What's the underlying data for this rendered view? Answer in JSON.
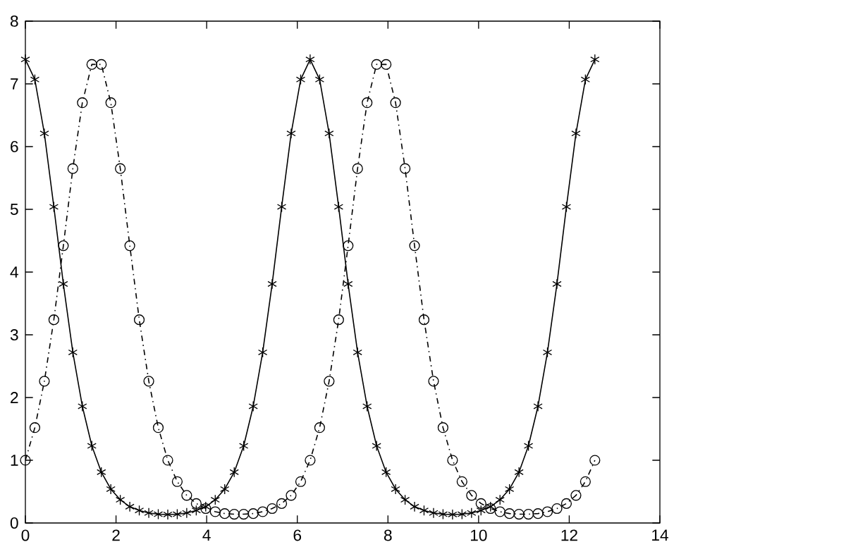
{
  "chart_data": {
    "type": "line",
    "x": [
      0,
      0.209,
      0.419,
      0.628,
      0.838,
      1.047,
      1.257,
      1.466,
      1.676,
      1.885,
      2.094,
      2.304,
      2.513,
      2.723,
      2.932,
      3.142,
      3.351,
      3.56,
      3.77,
      3.979,
      4.189,
      4.398,
      4.608,
      4.817,
      5.027,
      5.236,
      5.445,
      5.655,
      5.864,
      6.074,
      6.283,
      6.493,
      6.702,
      6.912,
      7.121,
      7.33,
      7.54,
      7.749,
      7.959,
      8.168,
      8.378,
      8.587,
      8.796,
      9.006,
      9.215,
      9.425,
      9.634,
      9.844,
      10.053,
      10.263,
      10.472,
      10.681,
      10.891,
      11.1,
      11.31,
      11.519,
      11.729,
      11.938,
      12.148,
      12.357,
      12.566
    ],
    "series": [
      {
        "color": "#000000",
        "marker": "cross",
        "line_style": "solid",
        "values": [
          7.39,
          7.07,
          6.21,
          5.04,
          3.81,
          2.72,
          1.86,
          1.23,
          0.81,
          0.54,
          0.37,
          0.26,
          0.2,
          0.16,
          0.14,
          0.135,
          0.14,
          0.16,
          0.2,
          0.26,
          0.37,
          0.54,
          0.81,
          1.23,
          1.86,
          2.72,
          3.81,
          5.04,
          6.21,
          7.07,
          7.39,
          7.07,
          6.21,
          5.04,
          3.81,
          2.72,
          1.86,
          1.23,
          0.81,
          0.54,
          0.37,
          0.26,
          0.2,
          0.16,
          0.14,
          0.135,
          0.14,
          0.16,
          0.2,
          0.26,
          0.37,
          0.54,
          0.81,
          1.23,
          1.86,
          2.72,
          3.81,
          5.04,
          6.21,
          7.07,
          7.39
        ]
      },
      {
        "color": "#000000",
        "marker": "circle",
        "line_style": "dashdot",
        "values": [
          1.0,
          1.52,
          2.26,
          3.24,
          4.42,
          5.65,
          6.7,
          7.31,
          7.31,
          6.7,
          5.65,
          4.42,
          3.24,
          2.26,
          1.52,
          1.0,
          0.66,
          0.44,
          0.31,
          0.23,
          0.18,
          0.15,
          0.14,
          0.14,
          0.15,
          0.18,
          0.23,
          0.31,
          0.44,
          0.66,
          1.0,
          1.52,
          2.26,
          3.24,
          4.42,
          5.65,
          6.7,
          7.31,
          7.31,
          6.7,
          5.65,
          4.42,
          3.24,
          2.26,
          1.52,
          1.0,
          0.66,
          0.44,
          0.31,
          0.23,
          0.18,
          0.15,
          0.14,
          0.14,
          0.15,
          0.18,
          0.23,
          0.31,
          0.44,
          0.66,
          1.0
        ]
      }
    ],
    "xlim": [
      0,
      14
    ],
    "ylim": [
      0,
      8
    ],
    "xticks": [
      0,
      2,
      4,
      6,
      8,
      10,
      12,
      14
    ],
    "yticks": [
      0,
      1,
      2,
      3,
      4,
      5,
      6,
      7,
      8
    ],
    "grid": false
  }
}
